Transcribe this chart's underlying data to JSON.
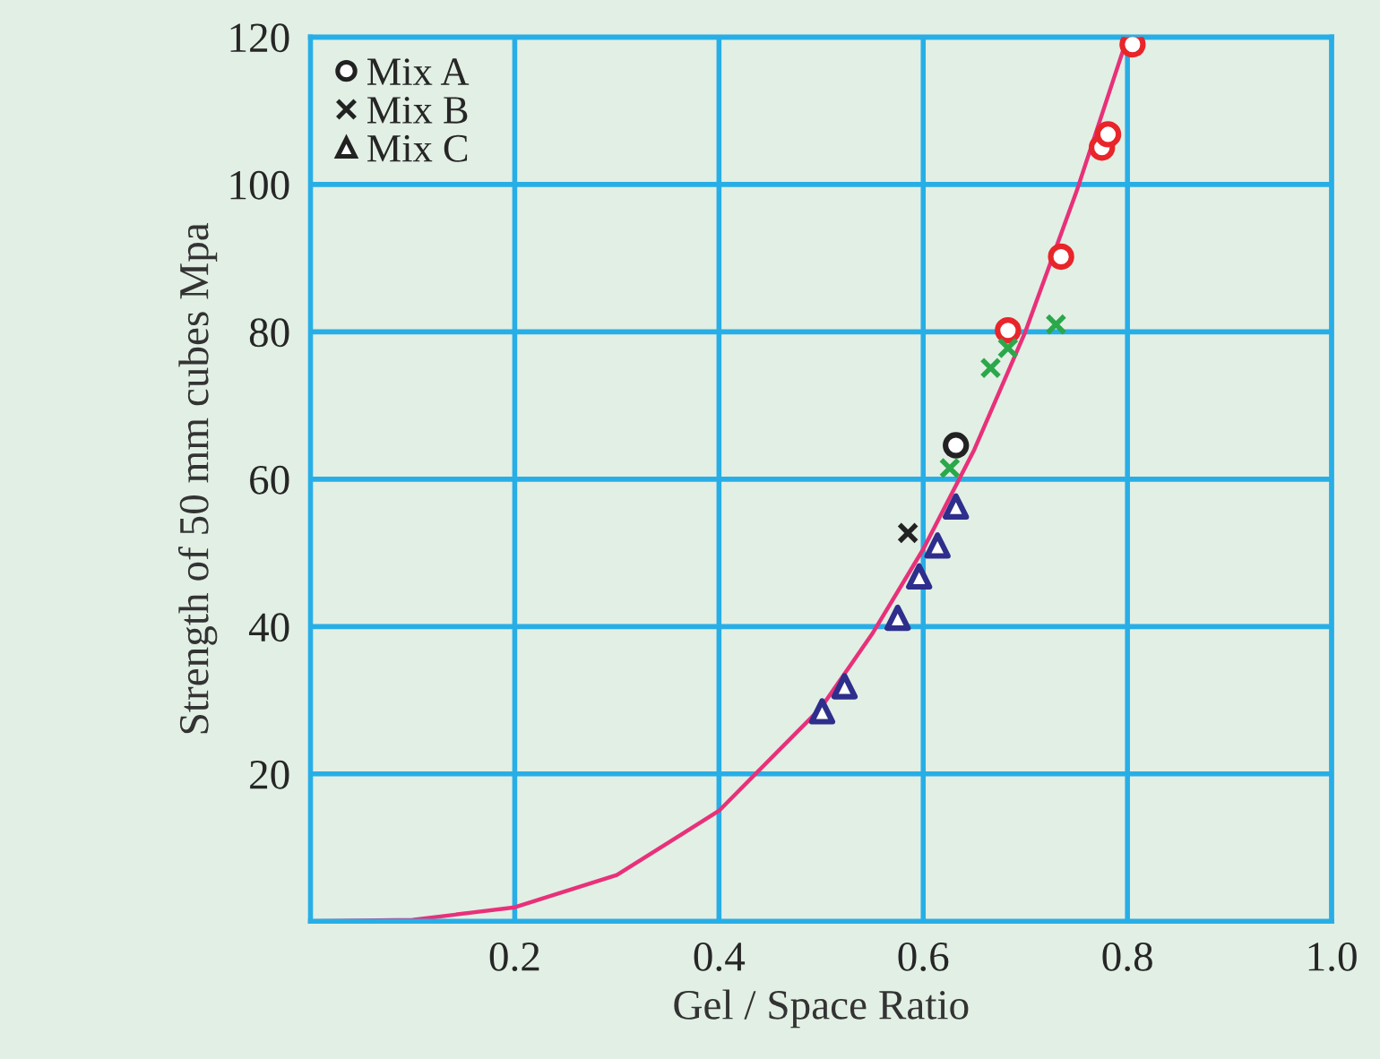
{
  "chart_data": {
    "type": "scatter",
    "xlabel": "Gel / Space Ratio",
    "ylabel": "Strength of 50 mm cubes Mpa",
    "xlim": [
      0,
      1
    ],
    "ylim": [
      0,
      120
    ],
    "xticks": [
      0.2,
      0.4,
      0.6,
      0.8,
      {
        "value": 1.0,
        "label": "1.0"
      }
    ],
    "yticks": [
      20,
      40,
      60,
      80,
      100,
      120
    ],
    "grid": true,
    "legend": "top left",
    "series": [
      {
        "name": "Mix A",
        "marker": "circle",
        "x": [
          0.683,
          0.735,
          0.775,
          0.781,
          0.805,
          0.632
        ],
        "values": [
          80.2,
          90.2,
          105,
          106.8,
          119,
          64.6
        ],
        "colors": [
          "#e8252a",
          "#e8252a",
          "#e8252a",
          "#e8252a",
          "#e8252a",
          "#222222"
        ]
      },
      {
        "name": "Mix B",
        "marker": "cross",
        "x": [
          0.73,
          0.683,
          0.666,
          0.626,
          0.585
        ],
        "values": [
          81.0,
          77.8,
          75.1,
          61.5,
          52.7
        ],
        "colors": [
          "#2aa84a",
          "#2aa84a",
          "#2aa84a",
          "#2aa84a",
          "#222222"
        ]
      },
      {
        "name": "Mix C",
        "marker": "triangle",
        "x": [
          0.632,
          0.614,
          0.596,
          0.575,
          0.523,
          0.501
        ],
        "values": [
          56.3,
          51.0,
          46.8,
          41.2,
          31.9,
          28.5
        ],
        "colors": [
          "#2e2e8c",
          "#2e2e8c",
          "#2e2e8c",
          "#2e2e8c",
          "#2e2e8c",
          "#2e2e8c"
        ]
      },
      {
        "type": "line",
        "color": "#e8317a",
        "x": [
          0,
          0.1,
          0.2,
          0.3,
          0.4,
          0.5,
          0.55,
          0.6,
          0.65,
          0.7,
          0.75,
          0.8
        ],
        "values": [
          0,
          0.2,
          1.9,
          6.3,
          15,
          29,
          39,
          50.5,
          64,
          80,
          99,
          120
        ]
      }
    ]
  }
}
